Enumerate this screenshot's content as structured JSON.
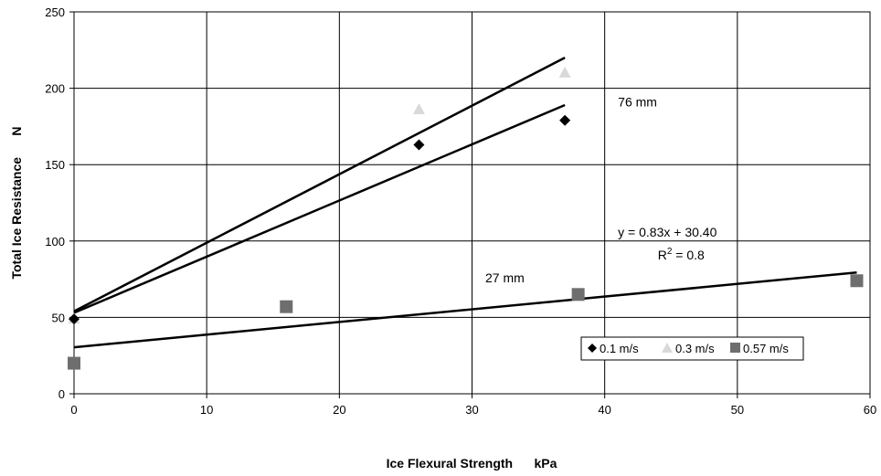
{
  "chart_data": {
    "type": "scatter",
    "xlabel": "Ice Flexural Strength      kPa",
    "ylabel": "Total Ice Resistance      N",
    "xlim": [
      0,
      60
    ],
    "ylim": [
      0,
      250
    ],
    "xticks": [
      0,
      10,
      20,
      30,
      40,
      50,
      60
    ],
    "yticks": [
      0,
      50,
      100,
      150,
      200,
      250
    ],
    "grid": true,
    "legend_position": "bottom-right",
    "series": [
      {
        "name": "0.1 m/s",
        "marker": "diamond",
        "color": "#000000",
        "x": [
          0,
          26,
          37
        ],
        "y": [
          49,
          163,
          179
        ]
      },
      {
        "name": "0.3 m/s",
        "marker": "triangle",
        "color": "#d9d9d9",
        "x": [
          0,
          26,
          37
        ],
        "y": [
          49,
          186,
          210
        ]
      },
      {
        "name": "0.57 m/s",
        "marker": "square",
        "color": "#6e6e6e",
        "x": [
          0,
          16,
          38,
          59
        ],
        "y": [
          20,
          57,
          65,
          74
        ]
      }
    ],
    "trendlines": [
      {
        "series": "0.3 m/s",
        "x": [
          0,
          37
        ],
        "y": [
          54,
          220
        ]
      },
      {
        "series": "0.1 m/s",
        "x": [
          0,
          37
        ],
        "y": [
          53,
          189
        ]
      },
      {
        "series": "0.57 m/s",
        "x": [
          0,
          59
        ],
        "y": [
          30.4,
          79.4
        ]
      }
    ],
    "annotations": [
      {
        "text": "76 mm",
        "x": 41,
        "y": 188
      },
      {
        "text": "y = 0.83x + 30.40",
        "x": 41,
        "y": 103
      },
      {
        "text": "27 mm",
        "x": 31,
        "y": 73
      }
    ],
    "r2": {
      "label": "R",
      "sup": "2",
      "value": " = 0.8",
      "x": 44,
      "y": 88
    }
  }
}
